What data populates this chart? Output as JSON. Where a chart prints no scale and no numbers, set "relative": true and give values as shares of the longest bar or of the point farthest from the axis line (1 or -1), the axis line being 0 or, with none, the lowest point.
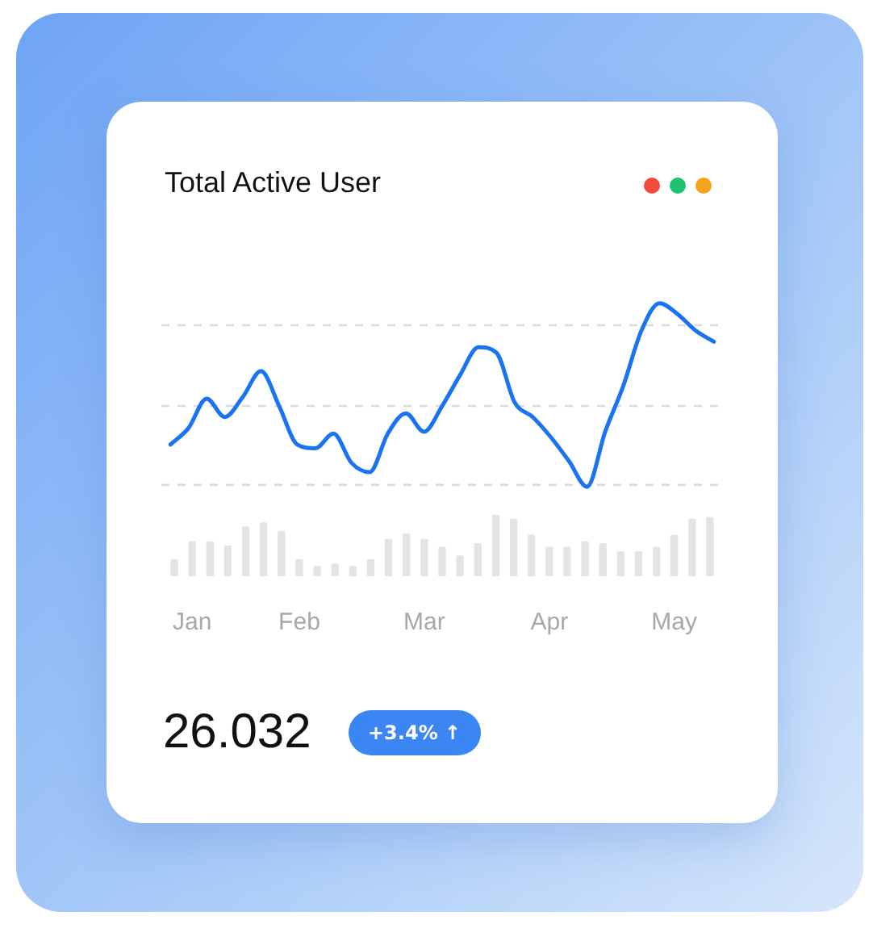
{
  "chart_data": [
    {
      "type": "line",
      "title": "Total Active User",
      "relative": true,
      "legend": false,
      "marker": "none",
      "line_style": "solid",
      "tick_labels": false,
      "categories": [
        null,
        null,
        null,
        null,
        null,
        null,
        null,
        null,
        null,
        null,
        null,
        null,
        null,
        null,
        null,
        null,
        null,
        null,
        null,
        null,
        null,
        null,
        null,
        null,
        null,
        null,
        null,
        null,
        null,
        null,
        null
      ],
      "series": [
        {
          "color": "#1a73f0",
          "values": [
            0.23,
            0.32,
            0.48,
            0.38,
            0.49,
            0.63,
            0.44,
            0.23,
            0.21,
            0.29,
            0.13,
            0.08,
            0.29,
            0.4,
            0.3,
            0.44,
            0.61,
            0.76,
            0.73,
            0.46,
            0.38,
            0.27,
            0.14,
            0,
            0.3,
            0.55,
            0.85,
            1,
            0.94,
            0.85,
            0.79
          ]
        }
      ],
      "ref_lines": [
        {
          "axis": "y",
          "value": 0.01,
          "color": "#dcdcdc",
          "line_style": "dashed"
        },
        {
          "axis": "y",
          "value": 0.44,
          "color": "#dcdcdc",
          "line_style": "dashed"
        },
        {
          "axis": "y",
          "value": 0.88,
          "color": "#dcdcdc",
          "line_style": "dashed"
        }
      ],
      "annotations": [
        "26.032",
        "+3.4% ↑"
      ]
    },
    {
      "type": "bar",
      "relative": true,
      "legend": false,
      "tick_labels": "x",
      "categories": [
        null,
        "Jan",
        null,
        null,
        null,
        null,
        null,
        "Feb",
        null,
        null,
        null,
        null,
        null,
        null,
        "Mar",
        null,
        null,
        null,
        null,
        null,
        null,
        "Apr",
        null,
        null,
        null,
        null,
        null,
        null,
        "May",
        null,
        null
      ],
      "series": [
        {
          "color": "#e4e4e4",
          "values": [
            0.27,
            0.56,
            0.56,
            0.49,
            0.8,
            0.87,
            0.73,
            0.27,
            0.16,
            0.2,
            0.16,
            0.27,
            0.6,
            0.69,
            0.6,
            0.47,
            0.33,
            0.53,
            1,
            0.93,
            0.67,
            0.47,
            0.47,
            0.56,
            0.53,
            0.4,
            0.4,
            0.47,
            0.67,
            0.93,
            0.96
          ]
        }
      ]
    }
  ]
}
